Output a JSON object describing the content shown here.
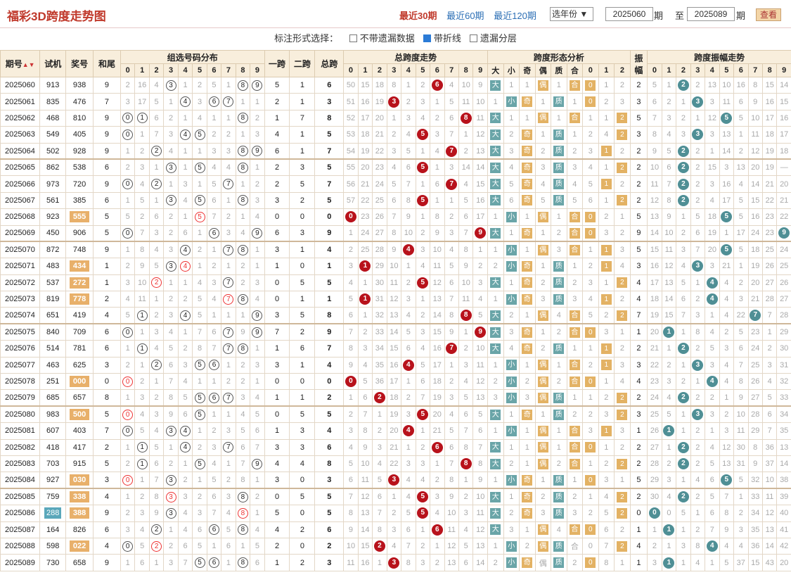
{
  "title": "福彩3D跨度走势图",
  "quick": [
    "最近30期",
    "最近60期",
    "最近120期"
  ],
  "year_select": "选年份",
  "from_period": "2025060",
  "from_label": "期",
  "to_label": "至",
  "to_period": "2025089",
  "to_suffix": "期",
  "query_label": "查看",
  "options": {
    "prompt": "标注形式选择：",
    "items": [
      {
        "label": "不带遗漏数据",
        "checked": false
      },
      {
        "label": "带折线",
        "checked": true
      },
      {
        "label": "遗漏分层",
        "checked": false
      }
    ]
  },
  "headers": {
    "period": "期号",
    "sort_icon": "sort-arrows-icon",
    "trial": "试机",
    "award": "奖号",
    "sum_tail": "和尾",
    "group_dist": "组选号码分布",
    "span1": "一跨",
    "span2": "二跨",
    "total_span": "总跨",
    "span_trend": "总跨度走势",
    "shape": "跨度形态分析",
    "amp": "振幅",
    "amp_trend": "跨度振幅走势",
    "shape_sub": [
      "大",
      "小",
      "奇",
      "偶",
      "质",
      "合",
      "0",
      "1",
      "2"
    ],
    "digits": [
      "0",
      "1",
      "2",
      "3",
      "4",
      "5",
      "6",
      "7",
      "8",
      "9"
    ]
  },
  "rows": [
    {
      "p": "2025060",
      "t": "913",
      "a": "938",
      "h": "9",
      "s1": "5",
      "s2": "1",
      "ts": "6",
      "amp": "2",
      "g": "2,16,4,3,1,2,5,1,8,9",
      "gh": "3,8,9",
      "sp": "50,15,18,8,1,2,6,4,10,9",
      "sh": "大,1,1,偶,1,合,0,1,2",
      "am": "5,1,2,13,10,16,8,15,14,"
    },
    {
      "p": "2025061",
      "t": "835",
      "a": "476",
      "h": "7",
      "s1": "2",
      "s2": "1",
      "ts": "3",
      "amp": "3",
      "g": "3,17,5,1,4,3,6,7,1,1",
      "gh": "4,6,7",
      "sp": "51,16,19,3,2,3,1,5,11,10",
      "sh": "1,小,奇,1,质,1,0,2,3",
      "am": "6,2,1,3,11,6,9,16,15,"
    },
    {
      "p": "2025062",
      "t": "468",
      "a": "810",
      "h": "9",
      "s1": "1",
      "s2": "7",
      "ts": "8",
      "amp": "5",
      "g": "0,1,6,2,1,4,1,1,8,2",
      "gh": "0,1,8",
      "sp": "52,17,20,1,3,4,2,6,8,11",
      "sh": "大,1,1,偶,1,合,1,1,2",
      "am": "7,3,2,1,12,5,10,17,16,"
    },
    {
      "p": "2025063",
      "t": "549",
      "a": "405",
      "h": "9",
      "s1": "4",
      "s2": "1",
      "ts": "5",
      "amp": "3",
      "g": "0,1,7,3,4,5,2,2,1,3",
      "gh": "0,4,5",
      "sp": "53,18,21,2,4,5,3,7,1,12",
      "sh": "大,2,奇,1,质,1,2,4,2",
      "am": "8,4,3,3,13,1,11,18,17,"
    },
    {
      "p": "2025064",
      "t": "502",
      "a": "928",
      "h": "9",
      "s1": "6",
      "s2": "1",
      "ts": "7",
      "amp": "2",
      "g": "1,2,2,4,1,1,3,3,8,9",
      "gh": "2,8,9",
      "sp": "54,19,22,3,5,1,4,7,2,13",
      "sh": "大,3,奇,2,质,2,3,1,2",
      "am": "9,5,2,1,14,2,12,19,18,"
    },
    {
      "p": "2025065",
      "t": "862",
      "a": "538",
      "h": "6",
      "s1": "2",
      "s2": "3",
      "ts": "5",
      "amp": "2",
      "g": "2,3,1,3,1,5,4,4,8,1",
      "gh": "3,5,8",
      "sp": "55,20,23,4,6,5,1,3,14,14",
      "sh": "大,4,奇,3,质,3,4,1,2",
      "am": "10,6,2,15,3,13,20,19,"
    },
    {
      "p": "2025066",
      "t": "973",
      "a": "720",
      "h": "9",
      "s1": "2",
      "s2": "5",
      "ts": "7",
      "amp": "2",
      "g": "0,4,2,1,3,1,5,7,1,2",
      "gh": "0,2,7",
      "sp": "56,21,24,5,7,1,6,7,4,15",
      "sh": "大,5,奇,4,质,4,5,1,2",
      "am": "11,7,2,3,16,4,14,21,20,"
    },
    {
      "p": "2025067",
      "t": "561",
      "a": "385",
      "h": "6",
      "s1": "3",
      "s2": "2",
      "ts": "5",
      "amp": "2",
      "g": "1,5,1,3,4,5,6,1,8,3",
      "gh": "3,5,8",
      "sp": "57,22,25,6,8,5,1,1,5,16",
      "sh": "大,6,奇,5,质,5,6,1,2",
      "am": "12,8,2,4,17,5,15,22,21,"
    },
    {
      "p": "2025068",
      "t": "923",
      "a": "555",
      "h": "5",
      "s1": "0",
      "s2": "0",
      "ts": "0",
      "amp": "5",
      "g": "5,2,6,2,1,5,7,2,1,4",
      "gh": "5",
      "sp": "0,23,26,7,9,1,8,2,6,17",
      "sh": "1,小,1,偶,1,合,0,2,1",
      "am": "13,9,1,5,18,5,16,23,22,"
    },
    {
      "p": "2025069",
      "t": "450",
      "a": "906",
      "h": "5",
      "s1": "6",
      "s2": "3",
      "ts": "9",
      "amp": "9",
      "g": "0,7,3,2,6,1,6,3,4,9",
      "gh": "0,6,9",
      "sp": "1,24,27,8,10,2,9,3,7,9",
      "sh": "大,1,奇,1,2,合,0,3,2",
      "am": "14,10,2,6,19,1,17,24,23,9"
    },
    {
      "p": "2025070",
      "t": "872",
      "a": "748",
      "h": "9",
      "s1": "3",
      "s2": "1",
      "ts": "4",
      "amp": "5",
      "g": "1,8,4,3,4,2,1,7,8,1",
      "gh": "4,7,8",
      "sp": "2,25,28,9,4,3,10,4,8,1",
      "sh": "1,小,1,偶,3,合,1,1,3",
      "am": "15,11,3,7,20,5,18,25,24,1"
    },
    {
      "p": "2025071",
      "t": "483",
      "a": "434",
      "h": "1",
      "s1": "1",
      "s2": "0",
      "ts": "1",
      "amp": "3",
      "g": "2,9,5,3,4,1,2,1,2,1",
      "gh": "3,4",
      "sp": "3,1,29,10,1,4,11,5,9,2",
      "sh": "2,小,奇,1,质,1,2,1,4",
      "am": "16,12,4,3,21,1,19,26,25,2"
    },
    {
      "p": "2025072",
      "t": "537",
      "a": "272",
      "h": "1",
      "s1": "0",
      "s2": "5",
      "ts": "5",
      "amp": "4",
      "g": "3,10,2,1,1,4,3,7,2,3",
      "gh": "2,7",
      "sp": "4,1,30,11,2,5,12,6,10,3",
      "sh": "大,1,奇,2,质,2,3,1,2",
      "am": "17,13,5,1,4,2,20,27,26,3"
    },
    {
      "p": "2025073",
      "t": "819",
      "a": "778",
      "h": "2",
      "s1": "0",
      "s2": "1",
      "ts": "1",
      "amp": "4",
      "g": "4,11,1,2,2,5,4,7,8,4",
      "gh": "7,8",
      "sp": "5,1,31,12,3,1,13,7,11,4",
      "sh": "1,小,奇,3,质,3,4,1,2",
      "am": "18,14,6,2,4,3,21,28,27,4"
    },
    {
      "p": "2025074",
      "t": "651",
      "a": "419",
      "h": "4",
      "s1": "3",
      "s2": "5",
      "ts": "8",
      "amp": "7",
      "g": "5,1,2,3,4,5,1,1,1,9",
      "gh": "1,4,9",
      "sp": "6,1,32,13,4,2,14,8,8,5",
      "sh": "大,2,1,偶,4,合,5,2,2",
      "am": "19,15,7,3,1,4,22,7,28,5"
    },
    {
      "p": "2025075",
      "t": "840",
      "a": "709",
      "h": "6",
      "s1": "7",
      "s2": "2",
      "ts": "9",
      "amp": "1",
      "g": "0,1,3,4,1,7,6,7,9,9",
      "gh": "0,7,9",
      "sp": "7,2,33,14,5,3,15,9,1,9",
      "sh": "大,3,奇,1,2,合,0,3,1",
      "am": "20,1,8,4,2,5,23,1,29,6"
    },
    {
      "p": "2025076",
      "t": "514",
      "a": "781",
      "h": "6",
      "s1": "1",
      "s2": "6",
      "ts": "7",
      "amp": "2",
      "g": "1,1,4,5,2,8,7,7,8,1",
      "gh": "1,7,8",
      "sp": "8,3,34,15,6,4,16,7,2,10",
      "sh": "大,4,奇,2,质,1,1,1,2",
      "am": "21,1,2,5,3,6,24,2,30,7"
    },
    {
      "p": "2025077",
      "t": "463",
      "a": "625",
      "h": "3",
      "s1": "3",
      "s2": "1",
      "ts": "4",
      "amp": "3",
      "g": "2,1,2,6,3,5,6,1,2,3",
      "gh": "2,5,6",
      "sp": "9,4,35,16,4,5,17,1,3,11",
      "sh": "1,小,1,偶,1,合,2,1,3",
      "am": "22,2,1,3,4,7,25,3,31,8"
    },
    {
      "p": "2025078",
      "t": "251",
      "a": "000",
      "h": "0",
      "s1": "0",
      "s2": "0",
      "ts": "0",
      "amp": "4",
      "g": "0,2,1,7,4,1,1,2,2,1",
      "gh": "0",
      "sp": "0,5,36,17,1,6,18,2,4,12",
      "sh": "2,小,2,偶,2,合,0,1,4",
      "am": "23,3,2,1,4,8,26,4,32,9"
    },
    {
      "p": "2025079",
      "t": "685",
      "a": "657",
      "h": "8",
      "s1": "1",
      "s2": "1",
      "ts": "2",
      "amp": "2",
      "g": "1,3,2,8,5,5,6,7,3,4",
      "gh": "5,6,7",
      "sp": "1,6,2,18,2,7,19,3,5,13",
      "sh": "3,小,3,偶,质,1,1,2,2",
      "am": "24,4,2,2,1,9,27,5,33,10"
    },
    {
      "p": "2025080",
      "t": "983",
      "a": "500",
      "h": "5",
      "s1": "0",
      "s2": "5",
      "ts": "5",
      "amp": "3",
      "g": "0,4,3,9,6,5,1,1,4,5",
      "gh": "0,5",
      "sp": "2,7,1,19,3,5,20,4,6,5",
      "sh": "大,1,奇,1,质,2,2,3,2",
      "am": "25,5,1,3,2,10,28,6,34,11"
    },
    {
      "p": "2025081",
      "t": "607",
      "a": "403",
      "h": "7",
      "s1": "1",
      "s2": "3",
      "ts": "4",
      "amp": "1",
      "g": "0,5,4,3,4,1,2,3,5,6",
      "gh": "0,3,4",
      "sp": "3,8,2,20,4,1,21,5,7,6",
      "sh": "1,小,1,偶,1,合,3,1,3",
      "am": "26,1,2,1,3,11,29,7,35,12"
    },
    {
      "p": "2025082",
      "t": "418",
      "a": "417",
      "h": "2",
      "s1": "3",
      "s2": "3",
      "ts": "6",
      "amp": "2",
      "g": "1,1,5,1,4,2,3,7,6,7",
      "gh": "1,4,7",
      "sp": "4,9,3,21,1,2,6,6,8,7",
      "sh": "大,1,1,偶,1,合,0,1,2",
      "am": "27,1,2,4,12,30,8,36,13"
    },
    {
      "p": "2025083",
      "t": "703",
      "a": "915",
      "h": "5",
      "s1": "4",
      "s2": "4",
      "ts": "8",
      "amp": "2",
      "g": "2,1,6,2,1,5,4,1,7,9",
      "gh": "1,5,9",
      "sp": "5,10,4,22,3,3,1,7,8,8",
      "sh": "大,2,1,偶,2,合,1,2,2",
      "am": "28,2,2,5,13,31,9,37,14"
    },
    {
      "p": "2025084",
      "t": "927",
      "a": "030",
      "h": "3",
      "s1": "3",
      "s2": "0",
      "ts": "3",
      "amp": "5",
      "g": "0,1,7,3,2,1,5,2,8,1",
      "gh": "0,3",
      "sp": "6,11,5,3,4,4,2,8,1,9",
      "sh": "1,小,奇,1,质,1,0,3,1",
      "am": "29,3,1,4,6,5,32,10,38,15"
    },
    {
      "p": "2025085",
      "t": "759",
      "a": "338",
      "h": "4",
      "s1": "0",
      "s2": "5",
      "ts": "5",
      "amp": "2",
      "g": "1,2,8,3,3,2,6,3,8,2",
      "gh": "3,8",
      "sp": "7,12,6,1,4,5,3,9,2,10",
      "sh": "大,1,奇,2,质,2,1,4,2",
      "am": "30,4,2,5,7,1,33,11,39,16"
    },
    {
      "p": "2025086",
      "t": "288",
      "a": "388",
      "h": "9",
      "s1": "5",
      "s2": "0",
      "ts": "5",
      "amp": "0",
      "g": "2,3,9,3,4,3,7,4,8,1",
      "gh": "3,8",
      "sp": "8,13,7,2,5,5,4,10,3,11",
      "sh": "大,2,奇,3,质,3,2,5,2",
      "am": "0,5,1,6,8,2,34,12,40,17"
    },
    {
      "p": "2025087",
      "t": "164",
      "a": "826",
      "h": "6",
      "s1": "4",
      "s2": "2",
      "ts": "6",
      "amp": "1",
      "g": "3,4,2,1,4,6,6,5,8,4",
      "gh": "2,6,8",
      "sp": "9,14,8,3,6,1,6,11,4,12",
      "sh": "大,3,1,偶,4,合,3,6,2",
      "am": "1,1,2,7,9,3,35,13,41,18"
    },
    {
      "p": "2025088",
      "t": "598",
      "a": "022",
      "h": "4",
      "s1": "2",
      "s2": "0",
      "ts": "2",
      "amp": "4",
      "g": "0,5,2,2,6,5,1,6,1,5",
      "gh": "0,2",
      "sp": "10,15,2,4,7,2,1,12,5,13",
      "sh": "1,小,2,偶,5,合,0,7,2",
      "am": "2,1,3,8,4,4,36,14,42,19"
    },
    {
      "p": "2025089",
      "t": "730",
      "a": "658",
      "h": "9",
      "s1": "1",
      "s2": "2",
      "ts": "3",
      "amp": "1",
      "g": "1,6,1,3,7,5,6,1,8,6",
      "gh": "5,6,8",
      "sp": "11,16,1,3,8,3,2,13,6,14",
      "sh": "2,小,3,偶,质,2,0,8,1",
      "am": "3,1,4,1,5,37,15,43,20,"
    }
  ]
}
